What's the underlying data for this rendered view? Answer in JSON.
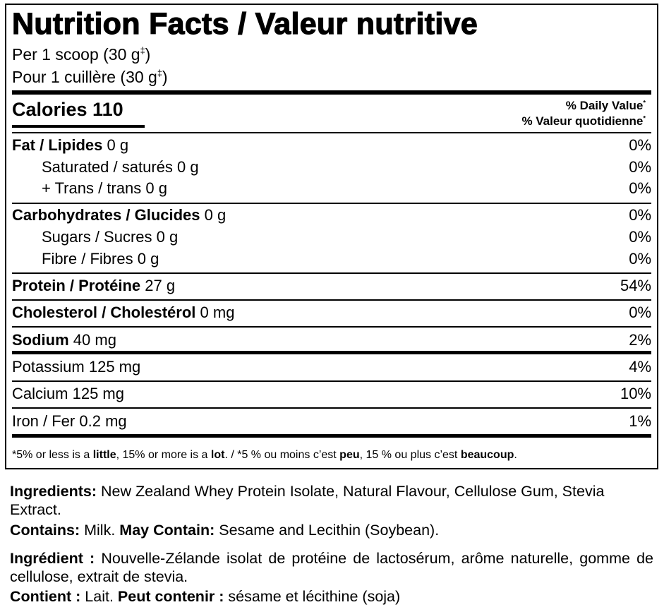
{
  "label": {
    "title": "Nutrition Facts / Valeur nutritive",
    "serving_en": [
      "Per 1 scoop (30 g",
      "‡",
      ")"
    ],
    "serving_fr": [
      "Pour 1 cuillère (30 g",
      "‡",
      ")"
    ],
    "calories": "Calories 110",
    "dv_en": [
      "% Daily Value",
      "*"
    ],
    "dv_fr": [
      "% Valeur quotidienne",
      "*"
    ],
    "nutrients": [
      {
        "name": "Fat / Lipides",
        "amount": "0 g",
        "dv": "0%"
      },
      {
        "name": "Saturated / saturés",
        "amount": "0 g",
        "dv": "0%"
      },
      {
        "name": "+ Trans / trans",
        "amount": "0 g",
        "dv": "0%"
      },
      {
        "name": "Carbohydrates / Glucides",
        "amount": "0 g",
        "dv": "0%"
      },
      {
        "name": "Sugars / Sucres",
        "amount": "0 g",
        "dv": "0%"
      },
      {
        "name": "Fibre / Fibres",
        "amount": "0 g",
        "dv": "0%"
      },
      {
        "name": "Protein / Protéine",
        "amount": "27 g",
        "dv": "54%"
      },
      {
        "name": "Cholesterol / Cholestérol",
        "amount": "0 mg",
        "dv": "0%"
      },
      {
        "name": "Sodium",
        "amount": "40 mg",
        "dv": "2%"
      },
      {
        "name": "Potassium",
        "amount": "125 mg",
        "dv": "4%"
      },
      {
        "name": "Calcium",
        "amount": "125 mg",
        "dv": "10%"
      },
      {
        "name": "Iron / Fer",
        "amount": "0.2 mg",
        "dv": "1%"
      }
    ],
    "footnote": [
      "*5% or less is a ",
      "little",
      ", 15% or more is a ",
      "lot",
      ". / *5 % ou moins c’est ",
      "peu",
      ", 15 % ou plus c’est ",
      "beaucoup",
      "."
    ]
  },
  "ingredients": {
    "en": [
      "Ingredients:",
      " New Zealand Whey Protein Isolate, Natural Flavour, Cellulose Gum, Stevia Extract."
    ],
    "contains_en": [
      "Contains:",
      " Milk. ",
      "May Contain:",
      " Sesame and Lecithin (Soybean)."
    ],
    "fr": [
      "Ingrédient :",
      " Nouvelle-Zélande isolat de protéine de lactosérum, arôme naturelle, gomme de cellulose, extrait de stevia."
    ],
    "contains_fr": [
      "Contient :",
      " Lait. ",
      "Peut contenir :",
      " sésame et lécithine (soja)"
    ]
  }
}
